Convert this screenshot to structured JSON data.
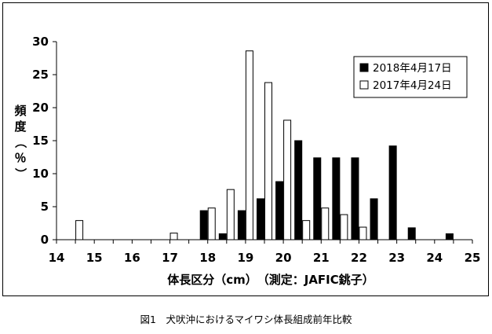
{
  "chart_data": {
    "type": "bar",
    "xlabel": "体長区分（cm）　（測定：JAFIC銚子）",
    "ylabel_chars": [
      "頻",
      "度",
      "（",
      "％",
      "）"
    ],
    "xlim": [
      14,
      25
    ],
    "ylim": [
      0,
      30
    ],
    "x_ticks": [
      "14",
      "15",
      "16",
      "17",
      "18",
      "19",
      "20",
      "21",
      "22",
      "23",
      "24",
      "25"
    ],
    "y_ticks": [
      "0",
      "5",
      "10",
      "15",
      "20",
      "25",
      "30"
    ],
    "grid": false,
    "legend_position": "top-right",
    "series": [
      {
        "name": "2018年4月17日",
        "color": "#000000",
        "x": [
          18.0,
          18.5,
          19.0,
          19.5,
          20.0,
          20.5,
          21.0,
          21.5,
          22.0,
          22.5,
          23.0,
          23.5,
          24.5
        ],
        "values": [
          4.4,
          0.9,
          4.4,
          6.2,
          8.8,
          15.0,
          12.4,
          12.4,
          12.4,
          6.2,
          14.2,
          1.8,
          0.9
        ]
      },
      {
        "name": "2017年4月24日",
        "color": "#ffffff",
        "x": [
          14.5,
          17.0,
          18.0,
          18.5,
          19.0,
          19.5,
          20.0,
          20.5,
          21.0,
          21.5,
          22.0
        ],
        "values": [
          2.9,
          1.0,
          4.8,
          7.6,
          28.6,
          23.8,
          18.1,
          2.9,
          4.8,
          3.8,
          1.9
        ]
      }
    ]
  },
  "caption": "図1　犬吠沖におけるマイワシ体長組成前年比較"
}
